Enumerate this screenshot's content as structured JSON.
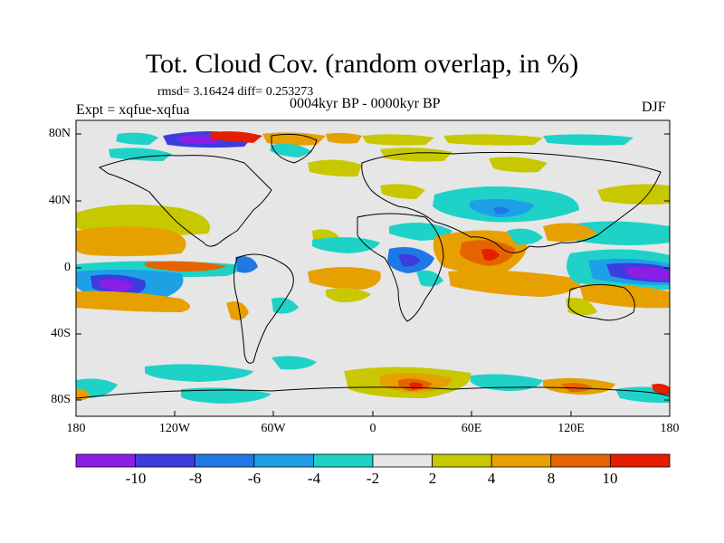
{
  "title": "Tot. Cloud Cov. (random overlap, in %)",
  "stats": "rmsd= 3.16424 diff= 0.253273",
  "experiment": "Expt = xqfue-xqfua",
  "period": "0004kyr BP - 0000kyr BP",
  "season": "DJF",
  "lat_labels": [
    "80N",
    "40N",
    "0",
    "40S",
    "80S"
  ],
  "lon_labels": [
    "180",
    "120W",
    "60W",
    "0",
    "60E",
    "120E",
    "180"
  ],
  "colorbar": {
    "labels": [
      "-10",
      "-8",
      "-6",
      "-4",
      "-2",
      "2",
      "4",
      "8",
      "10"
    ],
    "colors": [
      "#8c1fe6",
      "#3c3ce0",
      "#1e78e6",
      "#1ea0e6",
      "#1ed2c8",
      "#e6e6e6",
      "#c8c800",
      "#e6a000",
      "#e66400",
      "#e61e00"
    ]
  },
  "colors": {
    "ocean_bg": "#e6e6e6",
    "coastline": "#000000"
  }
}
